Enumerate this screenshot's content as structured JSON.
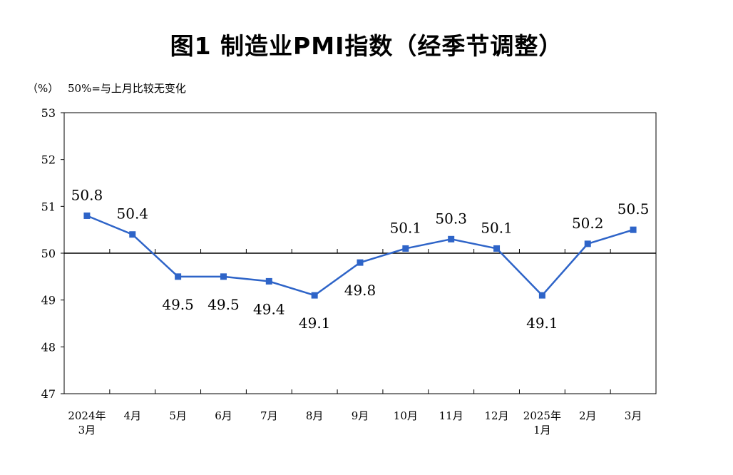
{
  "title": "图1  制造业PMI指数（经季节调整）",
  "unit_label": "（%）",
  "note": "50%=与上月比较无变化",
  "chart_data": {
    "type": "line",
    "title": "图1  制造业PMI指数（经季节调整）",
    "ylabel": "（%）",
    "xlabel": "",
    "ylim": [
      47,
      53
    ],
    "yticks": [
      47,
      48,
      49,
      50,
      51,
      52,
      53
    ],
    "reference_line": 50,
    "grid": false,
    "categories": [
      [
        "2024年",
        "3月"
      ],
      [
        "4月"
      ],
      [
        "5月"
      ],
      [
        "6月"
      ],
      [
        "7月"
      ],
      [
        "8月"
      ],
      [
        "9月"
      ],
      [
        "10月"
      ],
      [
        "11月"
      ],
      [
        "12月"
      ],
      [
        "2025年",
        "1月"
      ],
      [
        "2月"
      ],
      [
        "3月"
      ]
    ],
    "values": [
      50.8,
      50.4,
      49.5,
      49.5,
      49.4,
      49.1,
      49.8,
      50.1,
      50.3,
      50.1,
      49.1,
      50.2,
      50.5
    ],
    "data_labels": [
      "50.8",
      "50.4",
      "49.5",
      "49.5",
      "49.4",
      "49.1",
      "49.8",
      "50.1",
      "50.3",
      "50.1",
      "49.1",
      "50.2",
      "50.5"
    ],
    "label_positions": [
      "above",
      "above",
      "below",
      "below",
      "below",
      "below",
      "below",
      "above",
      "above",
      "above",
      "below",
      "above",
      "above"
    ],
    "series_color": "#2e64c8"
  }
}
